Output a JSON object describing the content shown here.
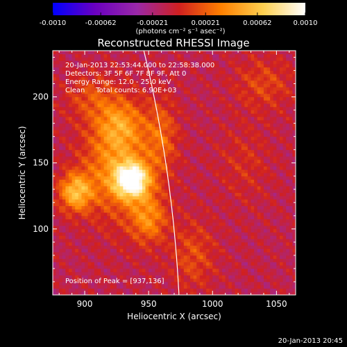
{
  "chart_data": {
    "type": "heatmap",
    "title": "Reconstructed RHESSI Image",
    "xlabel": "Heliocentric X (arcsec)",
    "ylabel": "Heliocentric Y (arcsec)",
    "xlim": [
      875,
      1065
    ],
    "ylim": [
      50,
      235
    ],
    "xticks": [
      900,
      950,
      1000,
      1050
    ],
    "yticks": [
      100,
      150,
      200
    ],
    "colorbar": {
      "min": -0.001,
      "max": 0.001,
      "tick_labels": [
        "-0.0010",
        "-0.00062",
        "-0.00021",
        "0.00021",
        "0.00062",
        "0.0010"
      ],
      "tick_values": [
        -0.001,
        -0.00062,
        -0.00021,
        0.00021,
        0.00062,
        0.001
      ],
      "unit_label": "(photons cm⁻² s⁻¹ asec⁻²)",
      "colors": [
        "#0000ff",
        "#6a00c0",
        "#9a28a8",
        "#d02020",
        "#ff8000",
        "#ffd050",
        "#ffffff"
      ]
    },
    "annotations": [
      "20-Jan-2013 22:53:44.000 to 22:58:38.000",
      "Detectors: 3F 5F 6F 7F 8F 9F, Att 0",
      "Energy Range: 12.0 - 25.0 keV",
      "Clean     Total counts: 6.90E+03"
    ],
    "peak_label": "Position of Peak = [937,136]",
    "peak": {
      "x": 937,
      "y": 136
    },
    "sources": [
      {
        "x": 937,
        "y": 137,
        "sx": 9,
        "sy": 9,
        "amp": 1.0
      },
      {
        "x": 925,
        "y": 150,
        "sx": 18,
        "sy": 28,
        "amp": 0.45
      },
      {
        "x": 893,
        "y": 128,
        "sx": 9,
        "sy": 10,
        "amp": 0.6
      },
      {
        "x": 950,
        "y": 108,
        "sx": 10,
        "sy": 13,
        "amp": 0.4
      },
      {
        "x": 928,
        "y": 180,
        "sx": 12,
        "sy": 12,
        "amp": 0.3
      },
      {
        "x": 960,
        "y": 170,
        "sx": 9,
        "sy": 20,
        "amp": 0.28
      },
      {
        "x": 905,
        "y": 200,
        "sx": 14,
        "sy": 12,
        "amp": 0.2
      },
      {
        "x": 985,
        "y": 80,
        "sx": 12,
        "sy": 18,
        "amp": 0.22
      },
      {
        "x": 1040,
        "y": 210,
        "sx": 16,
        "sy": 14,
        "amp": 0.2
      },
      {
        "x": 1025,
        "y": 150,
        "sx": 14,
        "sy": 20,
        "amp": 0.12
      }
    ]
  },
  "footer": {
    "timestamp": "20-Jan-2013 20:45"
  }
}
